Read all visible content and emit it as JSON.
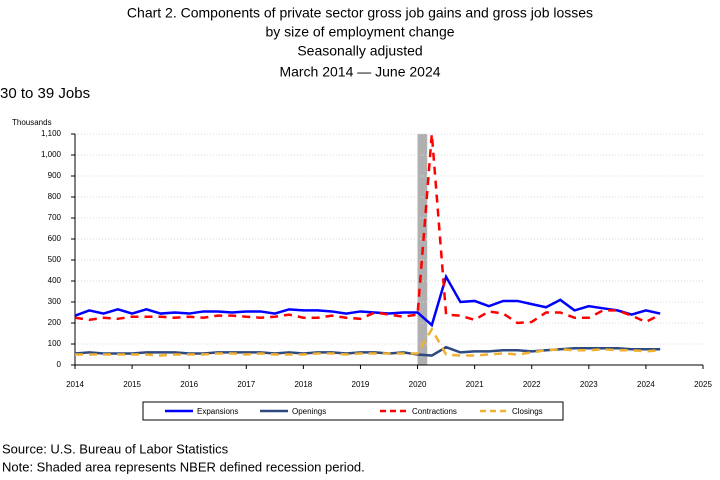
{
  "chart_data": {
    "type": "line",
    "title": [
      "Chart 2. Components of private sector gross job gains and gross job losses",
      "by size of employment change",
      "Seasonally adjusted",
      "March 2014 — June 2024"
    ],
    "subtitle": "30 to 39 Jobs",
    "y_label": "Thousands",
    "source": "Source: U.S. Bureau of Labor Statistics",
    "note": "Note: Shaded area represents NBER defined recession period.",
    "x": [
      2014,
      2014.25,
      2014.5,
      2014.75,
      2015,
      2015.25,
      2015.5,
      2015.75,
      2016,
      2016.25,
      2016.5,
      2016.75,
      2017,
      2017.25,
      2017.5,
      2017.75,
      2018,
      2018.25,
      2018.5,
      2018.75,
      2019,
      2019.25,
      2019.5,
      2019.75,
      2020,
      2020.25,
      2020.5,
      2020.75,
      2021,
      2021.25,
      2021.5,
      2021.75,
      2022,
      2022.25,
      2022.5,
      2022.75,
      2023,
      2023.25,
      2023.5,
      2023.75,
      2024,
      2024.25
    ],
    "series": [
      {
        "name": "Expansions",
        "color": "#0000ff",
        "dashed": false,
        "values": [
          235,
          260,
          245,
          265,
          245,
          265,
          245,
          250,
          245,
          255,
          255,
          250,
          255,
          255,
          245,
          265,
          260,
          260,
          255,
          245,
          255,
          250,
          245,
          250,
          250,
          190,
          420,
          300,
          305,
          280,
          305,
          305,
          290,
          275,
          310,
          260,
          280,
          270,
          260,
          240,
          260,
          245
        ]
      },
      {
        "name": "Openings",
        "color": "#2e4a80",
        "dashed": false,
        "values": [
          55,
          60,
          55,
          55,
          55,
          60,
          60,
          60,
          55,
          55,
          60,
          60,
          60,
          60,
          55,
          60,
          55,
          60,
          60,
          55,
          60,
          60,
          55,
          60,
          50,
          45,
          85,
          60,
          65,
          65,
          70,
          70,
          65,
          70,
          75,
          80,
          80,
          80,
          80,
          75,
          75,
          75
        ]
      },
      {
        "name": "Contractions",
        "color": "#ff0000",
        "dashed": true,
        "values": [
          225,
          215,
          225,
          220,
          230,
          230,
          230,
          225,
          230,
          225,
          235,
          235,
          230,
          225,
          230,
          240,
          225,
          225,
          235,
          225,
          220,
          250,
          240,
          230,
          240,
          1100,
          240,
          235,
          215,
          255,
          245,
          200,
          205,
          250,
          250,
          225,
          225,
          260,
          260,
          235,
          205,
          240
        ]
      },
      {
        "name": "Closings",
        "color": "#f0b030",
        "dashed": true,
        "values": [
          50,
          50,
          50,
          50,
          50,
          50,
          45,
          50,
          50,
          50,
          55,
          55,
          50,
          55,
          50,
          50,
          50,
          55,
          55,
          50,
          55,
          55,
          55,
          55,
          55,
          170,
          50,
          45,
          45,
          50,
          55,
          50,
          60,
          70,
          75,
          70,
          70,
          75,
          70,
          70,
          65,
          70
        ]
      }
    ],
    "recession": [
      2020,
      2020.17
    ],
    "xlim": [
      2014,
      2025
    ],
    "xticks": [
      2014,
      2015,
      2016,
      2017,
      2018,
      2019,
      2020,
      2021,
      2022,
      2023,
      2024,
      2025
    ],
    "ylim": [
      0,
      1100
    ],
    "yticks": [
      0,
      100,
      200,
      300,
      400,
      500,
      600,
      700,
      800,
      900,
      {
        "value": 1000,
        "label": "1,000"
      },
      {
        "value": 1100,
        "label": "1,100"
      }
    ],
    "grid": true
  }
}
